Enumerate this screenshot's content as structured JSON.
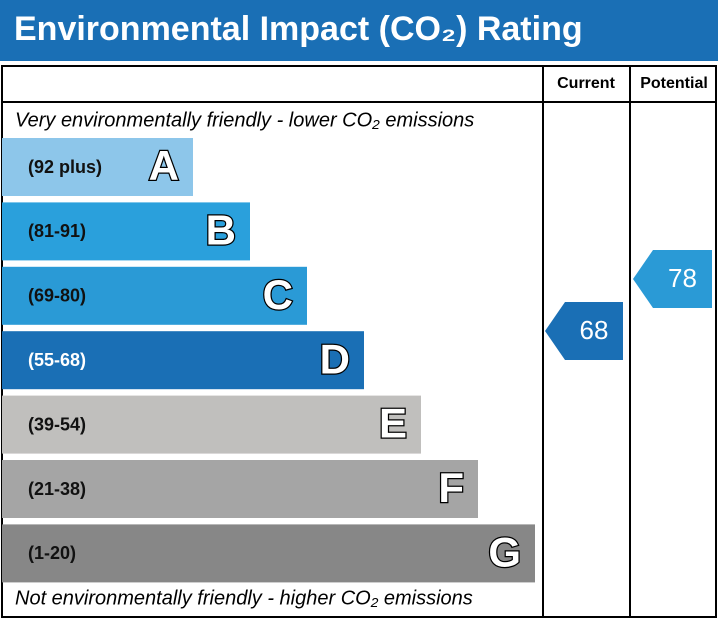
{
  "chart_data": {
    "type": "epc",
    "title": "Environmental Impact (CO₂) Rating",
    "columns": [
      "Current",
      "Potential"
    ],
    "top_note": "Very environmentally friendly - lower CO₂ emissions",
    "bottom_note": "Not environmentally friendly - higher CO₂ emissions",
    "title_color": "#1a6fb5",
    "bands": [
      {
        "range": "(92 plus)",
        "letter": "A",
        "color": "#8dc6ea"
      },
      {
        "range": "(81-91)",
        "letter": "B",
        "color": "#2aa0dc"
      },
      {
        "range": "(69-80)",
        "letter": "C",
        "color": "#2a9ad6"
      },
      {
        "range": "(55-68)",
        "letter": "D",
        "color": "#1a6fb5"
      },
      {
        "range": "(39-54)",
        "letter": "E",
        "color": "#c0bfbd"
      },
      {
        "range": "(21-38)",
        "letter": "F",
        "color": "#a5a5a5"
      },
      {
        "range": "(1-20)",
        "letter": "G",
        "color": "#878787"
      }
    ],
    "current": {
      "value": 68,
      "color": "#1a6fb5"
    },
    "potential": {
      "value": 78,
      "color": "#2a9ad6"
    }
  }
}
